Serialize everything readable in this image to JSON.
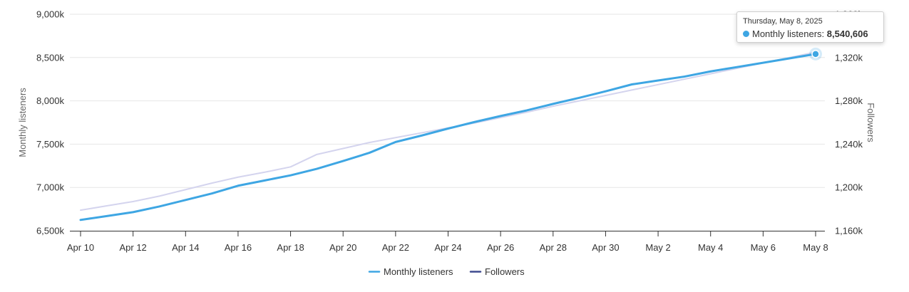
{
  "chart_data": {
    "type": "line",
    "x": [
      "Apr 10",
      "Apr 11",
      "Apr 12",
      "Apr 13",
      "Apr 14",
      "Apr 15",
      "Apr 16",
      "Apr 17",
      "Apr 18",
      "Apr 19",
      "Apr 20",
      "Apr 21",
      "Apr 22",
      "Apr 23",
      "Apr 24",
      "Apr 25",
      "Apr 26",
      "Apr 27",
      "Apr 28",
      "Apr 29",
      "Apr 30",
      "May 1",
      "May 2",
      "May 3",
      "May 4",
      "May 5",
      "May 6",
      "May 7",
      "May 8"
    ],
    "x_tick_labels": [
      "Apr 10",
      "Apr 12",
      "Apr 14",
      "Apr 16",
      "Apr 18",
      "Apr 20",
      "Apr 22",
      "Apr 24",
      "Apr 26",
      "Apr 28",
      "Apr 30",
      "May 2",
      "May 4",
      "May 6",
      "May 8"
    ],
    "series": [
      {
        "name": "Monthly listeners",
        "axis": "left",
        "color": "#3ea6e3",
        "values": [
          6625000,
          6670000,
          6715000,
          6780000,
          6855000,
          6930000,
          7020000,
          7080000,
          7140000,
          7215000,
          7305000,
          7400000,
          7525000,
          7600000,
          7680000,
          7755000,
          7825000,
          7890000,
          7965000,
          8035000,
          8110000,
          8190000,
          8235000,
          8280000,
          8340000,
          8390000,
          8440000,
          8490000,
          8540606
        ]
      },
      {
        "name": "Followers",
        "axis": "right",
        "color": "#d4d4ee",
        "legend_color": "#3f4a8f",
        "values": [
          1179000,
          1183000,
          1187000,
          1192000,
          1198000,
          1204000,
          1209500,
          1214000,
          1219000,
          1230500,
          1236000,
          1241500,
          1246000,
          1250500,
          1255000,
          1259500,
          1264500,
          1269500,
          1275000,
          1280000,
          1285000,
          1290000,
          1295000,
          1300000,
          1305000,
          1310000,
          1315000,
          1320000,
          1325000
        ]
      }
    ],
    "y_left": {
      "label": "Monthly listeners",
      "ylim": [
        6500000,
        9000000
      ],
      "ticks": [
        "6,500k",
        "7,000k",
        "7,500k",
        "8,000k",
        "8,500k",
        "9,000k"
      ]
    },
    "y_right": {
      "label": "Followers",
      "ylim": [
        1160000,
        1360000
      ],
      "ticks": [
        "1,160k",
        "1,200k",
        "1,240k",
        "1,280k",
        "1,320k",
        "1,360k"
      ]
    },
    "grid": true,
    "legend": {
      "placement": "bottom-center",
      "items": [
        "Monthly listeners",
        "Followers"
      ]
    },
    "tooltip": {
      "date": "Thursday, May 8, 2025",
      "series_label": "Monthly listeners:",
      "value": "8,540,606",
      "color": "#3ea6e3"
    }
  }
}
